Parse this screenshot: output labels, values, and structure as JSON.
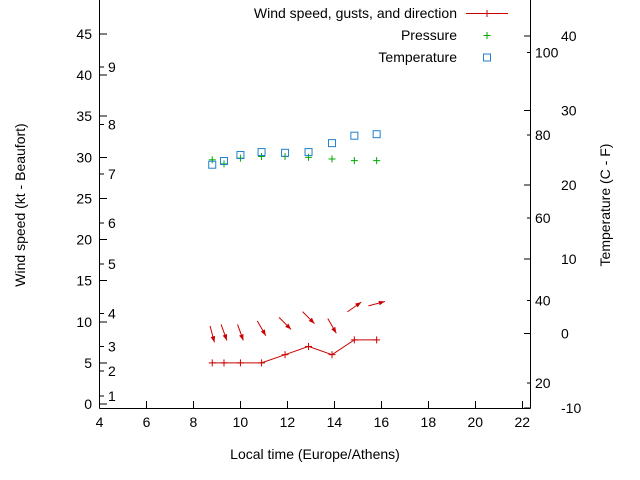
{
  "page": {
    "background": "#ffffff"
  },
  "chart_data": {
    "type": "line",
    "legend": [
      {
        "label": "Wind speed, gusts, and direction",
        "marker": "line-plus",
        "color": "#cc0000"
      },
      {
        "label": "Pressure",
        "marker": "plus",
        "color": "#00a800"
      },
      {
        "label": "Temperature",
        "marker": "square",
        "color": "#2080d0"
      }
    ],
    "x": {
      "label": "Local time (Europe/Athens)",
      "ticks": [
        4,
        6,
        8,
        10,
        12,
        14,
        16,
        18,
        20,
        22
      ],
      "range": [
        4,
        22.35
      ]
    },
    "y_left": {
      "label": "Wind speed (kt - Beaufort)",
      "kt_ticks": [
        0,
        5,
        10,
        15,
        20,
        25,
        30,
        35,
        40,
        45
      ],
      "beaufort_ticks": [
        {
          "label": "1",
          "kt": 1
        },
        {
          "label": "2",
          "kt": 4
        },
        {
          "label": "3",
          "kt": 7
        },
        {
          "label": "4",
          "kt": 11
        },
        {
          "label": "5",
          "kt": 17
        },
        {
          "label": "6",
          "kt": 22
        },
        {
          "label": "7",
          "kt": 28
        },
        {
          "label": "8",
          "kt": 34
        },
        {
          "label": "9",
          "kt": 41
        }
      ],
      "range_kt": [
        0,
        45
      ]
    },
    "y_right": {
      "label": "Temperature (C - F)",
      "c_ticks": [
        -10,
        0,
        10,
        20,
        30,
        40
      ],
      "f_ticks": [
        20,
        40,
        60,
        80,
        100
      ],
      "range_c": [
        -10,
        40
      ]
    },
    "times": [
      8.8,
      9.3,
      10.0,
      10.9,
      11.9,
      12.9,
      13.9,
      14.85,
      15.8
    ],
    "series": [
      {
        "name": "wind-speed-kt",
        "axis": "left",
        "marker": "plus",
        "line": true,
        "color": "#cc0000",
        "values": [
          5,
          5,
          5,
          5,
          6,
          7,
          6,
          7.8,
          7.8
        ]
      },
      {
        "name": "gusts-direction-kt",
        "axis": "left",
        "marker": "arrow",
        "line": false,
        "color": "#cc0000",
        "values": [
          8.5,
          8.7,
          8.7,
          9.2,
          9.8,
          10.5,
          9.5,
          11.8,
          12.2
        ],
        "angles_deg": [
          -75,
          -70,
          -70,
          -60,
          -45,
          -45,
          -60,
          35,
          15
        ]
      },
      {
        "name": "pressure-on-kt-scale",
        "axis": "left",
        "marker": "plus",
        "line": false,
        "color": "#00a800",
        "values": [
          29.7,
          29.2,
          29.9,
          30.1,
          30.1,
          30.0,
          29.8,
          29.6,
          29.6
        ]
      },
      {
        "name": "temperature-c",
        "axis": "right",
        "marker": "square",
        "line": false,
        "color": "#2080d0",
        "values": [
          22.7,
          23.2,
          24.0,
          24.4,
          24.3,
          24.4,
          25.6,
          26.6,
          26.8
        ]
      }
    ]
  }
}
